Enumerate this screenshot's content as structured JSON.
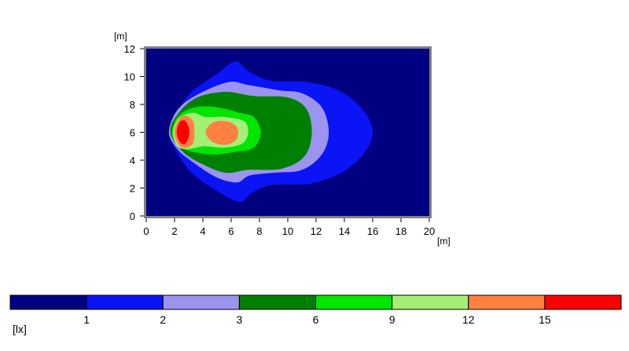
{
  "chart_data": {
    "type": "heatmap",
    "description_units": "illuminance contour map",
    "x_unit": "[m]",
    "y_unit": "[m]",
    "xlim": [
      0,
      20
    ],
    "ylim": [
      0,
      12
    ],
    "x_ticks": [
      "0",
      "2",
      "4",
      "6",
      "8",
      "10",
      "12",
      "14",
      "16",
      "18",
      "20"
    ],
    "y_ticks": [
      "0",
      "2",
      "4",
      "6",
      "8",
      "10",
      "12"
    ],
    "legend_unit": "[lx]",
    "legend_thresholds": [
      "1",
      "2",
      "3",
      "6",
      "9",
      "12",
      "15"
    ],
    "levels": [
      {
        "from": 0,
        "to": 1,
        "color": "#000080"
      },
      {
        "from": 1,
        "to": 2,
        "color": "#0A14F5"
      },
      {
        "from": 2,
        "to": 3,
        "color": "#9C94EE"
      },
      {
        "from": 3,
        "to": 6,
        "color": "#008000"
      },
      {
        "from": 6,
        "to": 9,
        "color": "#00E600"
      },
      {
        "from": 9,
        "to": 12,
        "color": "#A5EE78"
      },
      {
        "from": 12,
        "to": 15,
        "color": "#FF8040"
      },
      {
        "from": 15,
        "to": null,
        "color": "#FF0000"
      }
    ],
    "contours": [
      {
        "level": "1",
        "points": [
          [
            1.6,
            6
          ],
          [
            2.2,
            7.4
          ],
          [
            3.2,
            8.9
          ],
          [
            5,
            10.2
          ],
          [
            6.3,
            11.1
          ],
          [
            7.2,
            10.4
          ],
          [
            8.8,
            9.7
          ],
          [
            11.5,
            9.6
          ],
          [
            13.8,
            8.9
          ],
          [
            15.4,
            7.5
          ],
          [
            16,
            6
          ],
          [
            15.4,
            4.5
          ],
          [
            13.8,
            3.1
          ],
          [
            11.5,
            2.3
          ],
          [
            8.8,
            2.2
          ],
          [
            7.4,
            1.6
          ],
          [
            6.6,
            1
          ],
          [
            5,
            1.8
          ],
          [
            3.3,
            3
          ],
          [
            2.2,
            4.5
          ]
        ]
      },
      {
        "level": "2",
        "points": [
          [
            1.6,
            6
          ],
          [
            2.2,
            7.6
          ],
          [
            3.6,
            8.7
          ],
          [
            5.8,
            9.6
          ],
          [
            7.2,
            9.4
          ],
          [
            9.5,
            9
          ],
          [
            11,
            8.8
          ],
          [
            12.4,
            7.8
          ],
          [
            12.9,
            6
          ],
          [
            12.4,
            4.4
          ],
          [
            11,
            3.3
          ],
          [
            9,
            3.1
          ],
          [
            7.3,
            2.9
          ],
          [
            6.4,
            2.4
          ],
          [
            4.9,
            2.8
          ],
          [
            3.1,
            4
          ],
          [
            2.2,
            4.8
          ]
        ]
      },
      {
        "level": "3",
        "points": [
          [
            1.7,
            6
          ],
          [
            2.3,
            7.4
          ],
          [
            3.6,
            8.5
          ],
          [
            5.6,
            8.9
          ],
          [
            7.6,
            8.6
          ],
          [
            10,
            8.5
          ],
          [
            11.3,
            7.7
          ],
          [
            11.7,
            6
          ],
          [
            11.2,
            4.3
          ],
          [
            9.6,
            3.4
          ],
          [
            7.2,
            3.3
          ],
          [
            5.6,
            3.1
          ],
          [
            4,
            3.7
          ],
          [
            2.6,
            4.6
          ]
        ]
      },
      {
        "level": "6",
        "points": [
          [
            1.8,
            6
          ],
          [
            2.3,
            7.2
          ],
          [
            3.5,
            7.8
          ],
          [
            5,
            7.8
          ],
          [
            6.6,
            7.4
          ],
          [
            7.6,
            7.1
          ],
          [
            8.1,
            6
          ],
          [
            7.6,
            4.9
          ],
          [
            6.3,
            4.6
          ],
          [
            4.8,
            4.4
          ],
          [
            3.3,
            4.6
          ],
          [
            2.3,
            5
          ]
        ]
      },
      {
        "level": "9",
        "points": [
          [
            1.9,
            6
          ],
          [
            2.3,
            7
          ],
          [
            3.3,
            7.4
          ],
          [
            4.2,
            7.1
          ],
          [
            5.5,
            7.1
          ],
          [
            6.9,
            6.8
          ],
          [
            7.2,
            6
          ],
          [
            6.8,
            5.2
          ],
          [
            5.5,
            4.9
          ],
          [
            4.1,
            5
          ],
          [
            3,
            4.8
          ],
          [
            2.2,
            5
          ]
        ]
      },
      {
        "level": "12",
        "points": [
          [
            2,
            6
          ],
          [
            2.3,
            6.9
          ],
          [
            2.8,
            7.2
          ],
          [
            3.3,
            6.8
          ],
          [
            3.4,
            6
          ],
          [
            3.3,
            5.2
          ],
          [
            2.8,
            4.9
          ],
          [
            2.3,
            5.1
          ]
        ]
      },
      {
        "level": "12",
        "points": [
          [
            4.2,
            6
          ],
          [
            4.7,
            6.7
          ],
          [
            5.6,
            6.8
          ],
          [
            6.3,
            6.5
          ],
          [
            6.5,
            6
          ],
          [
            6.3,
            5.4
          ],
          [
            5.6,
            5.1
          ],
          [
            4.7,
            5.3
          ]
        ]
      },
      {
        "level": "15",
        "points": [
          [
            2.15,
            6
          ],
          [
            2.35,
            6.7
          ],
          [
            2.7,
            6.85
          ],
          [
            2.95,
            6.5
          ],
          [
            3.05,
            6
          ],
          [
            2.95,
            5.5
          ],
          [
            2.7,
            5.15
          ],
          [
            2.35,
            5.35
          ]
        ]
      }
    ]
  }
}
